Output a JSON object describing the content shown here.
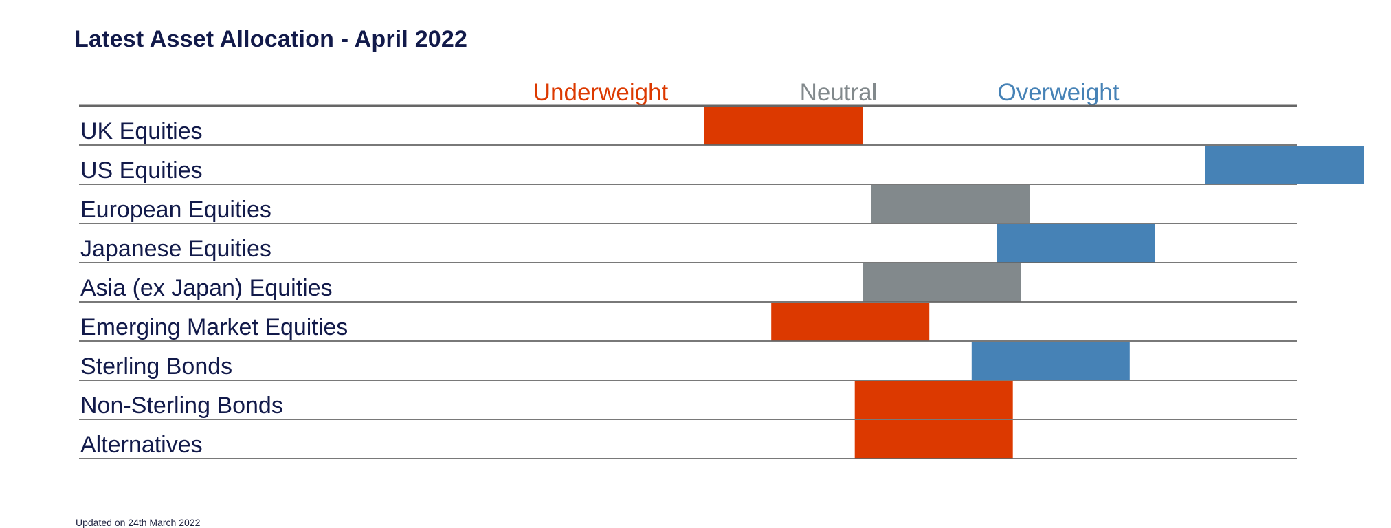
{
  "title": "Latest Asset Allocation - April 2022",
  "footnote": "Updated on 24th March 2022",
  "colors": {
    "underweight": "#DC3900",
    "neutral": "#82898C",
    "overweight": "#4682B6",
    "text": "#121A4A",
    "rule": "#666666"
  },
  "chart_data": {
    "type": "bar",
    "orientation": "horizontal",
    "scale_headers": [
      {
        "label": "Underweight",
        "color": "#DC3900"
      },
      {
        "label": "Neutral",
        "color": "#82898C"
      },
      {
        "label": "Overweight",
        "color": "#4682B6"
      }
    ],
    "xlim": [
      -3,
      3
    ],
    "categories": [
      "UK Equities",
      "US Equities",
      "European Equities",
      "Japanese Equities",
      "Asia (ex Japan) Equities",
      "Emerging Market Equities",
      "Sterling Bonds",
      "Non-Sterling Bonds",
      "Alternatives"
    ],
    "values": [
      -1,
      2,
      0,
      0.75,
      -0.05,
      -0.6,
      0.6,
      -0.1,
      -0.1
    ],
    "stances": [
      "underweight",
      "overweight",
      "neutral",
      "overweight",
      "neutral",
      "underweight",
      "overweight",
      "underweight",
      "underweight"
    ],
    "grid": true,
    "legend": "top"
  }
}
